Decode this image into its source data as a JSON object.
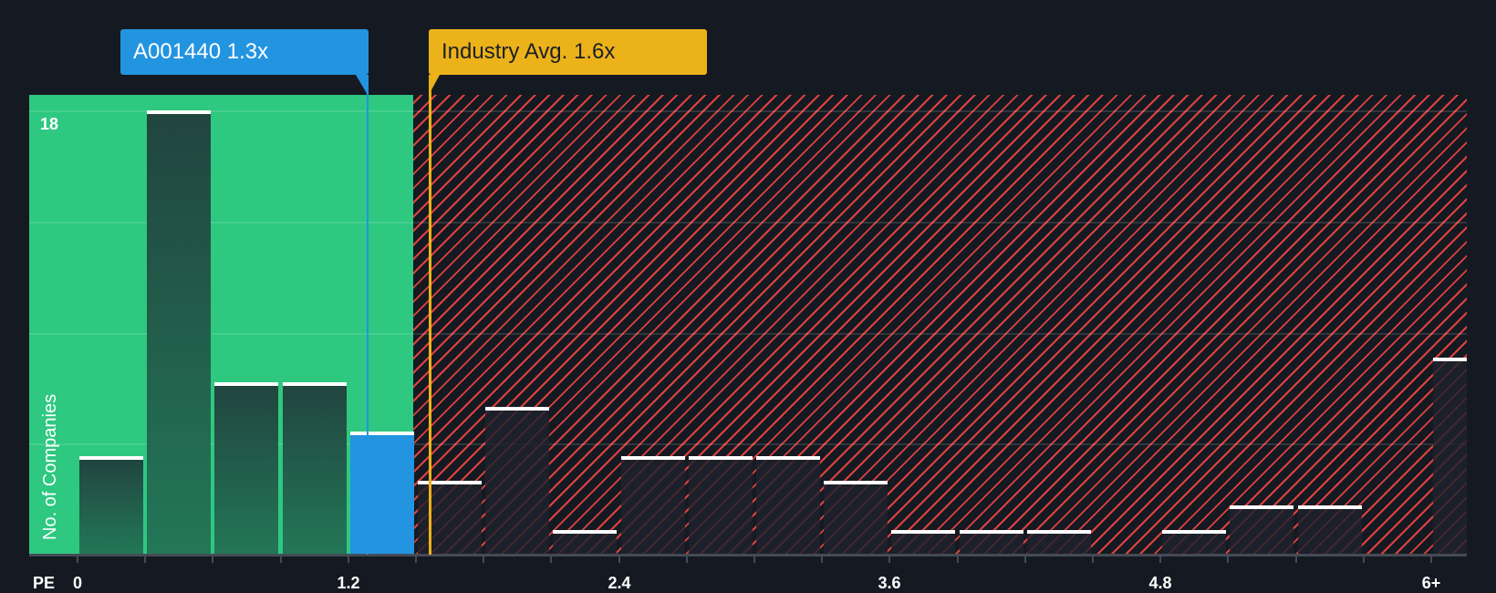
{
  "chart_data": {
    "type": "bar",
    "title": "",
    "xlabel": "PE",
    "ylabel": "No. of Companies",
    "x_tick_labels": [
      "0",
      "1.2",
      "2.4",
      "3.6",
      "4.8",
      "6+"
    ],
    "x_tick_values": [
      0,
      1.2,
      2.4,
      3.6,
      4.8,
      6.0
    ],
    "y_tick_labels": [
      "18"
    ],
    "ylim": [
      0,
      18
    ],
    "bin_width": 0.3,
    "categories": [
      "0-0.3",
      "0.3-0.6",
      "0.6-0.9",
      "0.9-1.2",
      "1.2-1.5",
      "1.5-1.8",
      "1.8-2.1",
      "2.1-2.4",
      "2.4-2.7",
      "2.7-3.0",
      "3.0-3.3",
      "3.3-3.6",
      "3.6-3.9",
      "3.9-4.2",
      "4.2-4.5",
      "4.5-4.8",
      "4.8-5.1",
      "5.1-5.4",
      "5.4-5.7",
      "5.7-6.0",
      "6+"
    ],
    "values": [
      4,
      18,
      7,
      7,
      5,
      3,
      6,
      1,
      4,
      4,
      4,
      3,
      1,
      1,
      1,
      0,
      1,
      2,
      2,
      0,
      8
    ],
    "subject_bin_index": 4,
    "annotations": [
      {
        "label": "A001440 1.3x",
        "value": 1.3,
        "color": "#2394e0"
      },
      {
        "label": "Industry Avg. 1.6x",
        "value": 1.6,
        "color": "#ecb21a"
      }
    ],
    "regions": [
      {
        "name": "below-industry-avg",
        "from": 0,
        "to": 1.5,
        "color": "#2ec880"
      },
      {
        "name": "above-industry-avg",
        "from": 1.5,
        "to": 6.15,
        "color": "#e0413f",
        "pattern": "hatched"
      }
    ],
    "grid": true,
    "legend": "none"
  },
  "labels": {
    "subject_callout": "A001440 1.3x",
    "industry_callout": "Industry Avg. 1.6x",
    "y_axis_title": "No. of Companies",
    "y_top_tick": "18",
    "x_axis_prefix": "PE"
  },
  "colors": {
    "background": "#151a22",
    "green_region": "#2ec880",
    "red_hatch": "#e0413f",
    "subject_blue": "#2394e0",
    "industry_yellow": "#ecb21a"
  }
}
